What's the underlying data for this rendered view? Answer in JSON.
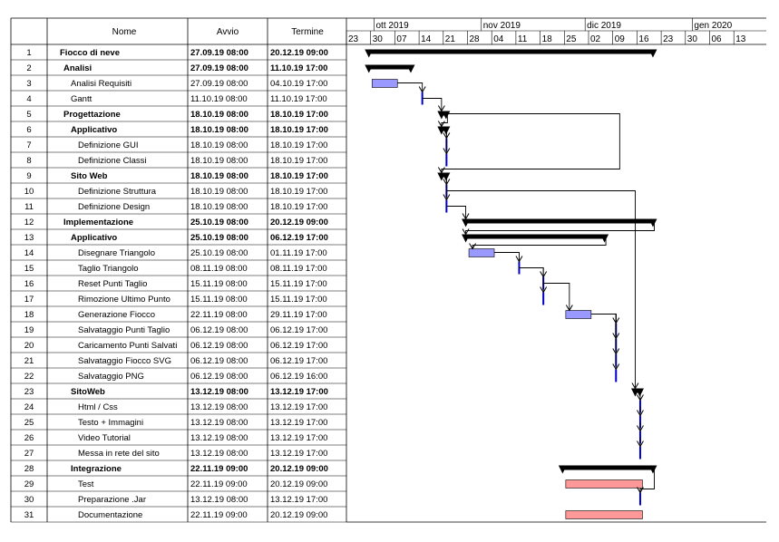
{
  "headers": {
    "name": "Nome",
    "start": "Avvio",
    "end": "Termine"
  },
  "timeline": {
    "months": [
      "ott 2019",
      "nov 2019",
      "dic 2019",
      "gen 2020"
    ],
    "weeks": [
      "23",
      "30",
      "07",
      "14",
      "21",
      "28",
      "04",
      "11",
      "18",
      "25",
      "02",
      "09",
      "16",
      "23",
      "30",
      "06",
      "13"
    ]
  },
  "colors": {
    "summary": "#000000",
    "task_blue": "#9999ff",
    "task_red": "#ff9999",
    "milestone": "#0000cc",
    "grid": "#000000"
  },
  "tasks": [
    {
      "id": "1",
      "name": "Fiocco di neve",
      "start": "27.09.19 08:00",
      "end": "20.12.19 09:00",
      "level": 0,
      "bold": true,
      "type": "summary"
    },
    {
      "id": "2",
      "name": "Analisi",
      "start": "27.09.19 08:00",
      "end": "11.10.19 17:00",
      "level": 1,
      "bold": true,
      "type": "summary"
    },
    {
      "id": "3",
      "name": "Analisi Requisiti",
      "start": "27.09.19 08:00",
      "end": "04.10.19 17:00",
      "level": 2,
      "bold": false,
      "type": "task"
    },
    {
      "id": "4",
      "name": "Gantt",
      "start": "11.10.19 08:00",
      "end": "11.10.19 17:00",
      "level": 2,
      "bold": false,
      "type": "milestone"
    },
    {
      "id": "5",
      "name": "Progettazione",
      "start": "18.10.19 08:00",
      "end": "18.10.19 17:00",
      "level": 1,
      "bold": true,
      "type": "summary"
    },
    {
      "id": "6",
      "name": "Applicativo",
      "start": "18.10.19 08:00",
      "end": "18.10.19 17:00",
      "level": 2,
      "bold": true,
      "type": "summary"
    },
    {
      "id": "7",
      "name": "Definizione GUI",
      "start": "18.10.19 08:00",
      "end": "18.10.19 17:00",
      "level": 3,
      "bold": false,
      "type": "milestone"
    },
    {
      "id": "8",
      "name": "Definizione Classi",
      "start": "18.10.19 08:00",
      "end": "18.10.19 17:00",
      "level": 3,
      "bold": false,
      "type": "milestone"
    },
    {
      "id": "9",
      "name": "Sito Web",
      "start": "18.10.19 08:00",
      "end": "18.10.19 17:00",
      "level": 2,
      "bold": true,
      "type": "summary"
    },
    {
      "id": "10",
      "name": "Definizione Struttura",
      "start": "18.10.19 08:00",
      "end": "18.10.19 17:00",
      "level": 3,
      "bold": false,
      "type": "milestone"
    },
    {
      "id": "11",
      "name": "Definizione Design",
      "start": "18.10.19 08:00",
      "end": "18.10.19 17:00",
      "level": 3,
      "bold": false,
      "type": "milestone"
    },
    {
      "id": "12",
      "name": "Implementazione",
      "start": "25.10.19 08:00",
      "end": "20.12.19 09:00",
      "level": 1,
      "bold": true,
      "type": "summary"
    },
    {
      "id": "13",
      "name": "Applicativo",
      "start": "25.10.19 08:00",
      "end": "06.12.19 17:00",
      "level": 2,
      "bold": true,
      "type": "summary"
    },
    {
      "id": "14",
      "name": "Disegnare Triangolo",
      "start": "25.10.19 08:00",
      "end": "01.11.19 17:00",
      "level": 3,
      "bold": false,
      "type": "task"
    },
    {
      "id": "15",
      "name": "Taglio Triangolo",
      "start": "08.11.19 08:00",
      "end": "08.11.19 17:00",
      "level": 3,
      "bold": false,
      "type": "milestone"
    },
    {
      "id": "16",
      "name": "Reset Punti Taglio",
      "start": "15.11.19 08:00",
      "end": "15.11.19 17:00",
      "level": 3,
      "bold": false,
      "type": "milestone"
    },
    {
      "id": "17",
      "name": "Rimozione Ultimo Punto",
      "start": "15.11.19 08:00",
      "end": "15.11.19 17:00",
      "level": 3,
      "bold": false,
      "type": "milestone"
    },
    {
      "id": "18",
      "name": "Generazione Fiocco",
      "start": "22.11.19 08:00",
      "end": "29.11.19 17:00",
      "level": 3,
      "bold": false,
      "type": "task"
    },
    {
      "id": "19",
      "name": "Salvataggio Punti Taglio",
      "start": "06.12.19 08:00",
      "end": "06.12.19 17:00",
      "level": 3,
      "bold": false,
      "type": "milestone"
    },
    {
      "id": "20",
      "name": "Caricamento Punti Salvati",
      "start": "06.12.19 08:00",
      "end": "06.12.19 17:00",
      "level": 3,
      "bold": false,
      "type": "milestone"
    },
    {
      "id": "21",
      "name": "Salvataggio Fiocco SVG",
      "start": "06.12.19 08:00",
      "end": "06.12.19 17:00",
      "level": 3,
      "bold": false,
      "type": "milestone"
    },
    {
      "id": "22",
      "name": "Salvataggio PNG",
      "start": "06.12.19 08:00",
      "end": "06.12.19 16:00",
      "level": 3,
      "bold": false,
      "type": "milestone"
    },
    {
      "id": "23",
      "name": "SitoWeb",
      "start": "13.12.19 08:00",
      "end": "13.12.19 17:00",
      "level": 2,
      "bold": true,
      "type": "summary"
    },
    {
      "id": "24",
      "name": "Html / Css",
      "start": "13.12.19 08:00",
      "end": "13.12.19 17:00",
      "level": 3,
      "bold": false,
      "type": "milestone"
    },
    {
      "id": "25",
      "name": "Testo + Immagini",
      "start": "13.12.19 08:00",
      "end": "13.12.19 17:00",
      "level": 3,
      "bold": false,
      "type": "milestone"
    },
    {
      "id": "26",
      "name": "Video Tutorial",
      "start": "13.12.19 08:00",
      "end": "13.12.19 17:00",
      "level": 3,
      "bold": false,
      "type": "milestone"
    },
    {
      "id": "27",
      "name": "Messa in rete del sito",
      "start": "13.12.19 08:00",
      "end": "13.12.19 17:00",
      "level": 3,
      "bold": false,
      "type": "milestone"
    },
    {
      "id": "28",
      "name": "Integrazione",
      "start": "22.11.19 09:00",
      "end": "20.12.19 09:00",
      "level": 2,
      "bold": true,
      "type": "summary"
    },
    {
      "id": "29",
      "name": "Test",
      "start": "22.11.19 09:00",
      "end": "20.12.19 09:00",
      "level": 3,
      "bold": false,
      "type": "task_red"
    },
    {
      "id": "30",
      "name": "Preparazione .Jar",
      "start": "13.12.19 08:00",
      "end": "13.12.19 17:00",
      "level": 3,
      "bold": false,
      "type": "milestone"
    },
    {
      "id": "31",
      "name": "Documentazione",
      "start": "22.11.19 09:00",
      "end": "20.12.19 09:00",
      "level": 3,
      "bold": false,
      "type": "task_red"
    }
  ],
  "dependencies": [
    {
      "from": "3",
      "to": "4"
    },
    {
      "from": "4",
      "to": "5"
    },
    {
      "from": "5",
      "to": "6"
    },
    {
      "from": "6",
      "to": "7"
    },
    {
      "from": "6",
      "to": "8"
    },
    {
      "from": "5",
      "to": "9"
    },
    {
      "from": "9",
      "to": "10"
    },
    {
      "from": "9",
      "to": "11"
    },
    {
      "from": "11",
      "to": "12"
    },
    {
      "from": "12",
      "to": "13"
    },
    {
      "from": "13",
      "to": "14"
    },
    {
      "from": "14",
      "to": "15"
    },
    {
      "from": "15",
      "to": "16"
    },
    {
      "from": "15",
      "to": "17"
    },
    {
      "from": "16",
      "to": "18"
    },
    {
      "from": "18",
      "to": "19"
    },
    {
      "from": "18",
      "to": "20"
    },
    {
      "from": "18",
      "to": "21"
    },
    {
      "from": "18",
      "to": "22"
    },
    {
      "from": "10",
      "to": "23"
    },
    {
      "from": "23",
      "to": "24"
    },
    {
      "from": "24",
      "to": "25"
    },
    {
      "from": "25",
      "to": "26"
    },
    {
      "from": "26",
      "to": "27"
    },
    {
      "from": "28",
      "to": "30"
    }
  ]
}
